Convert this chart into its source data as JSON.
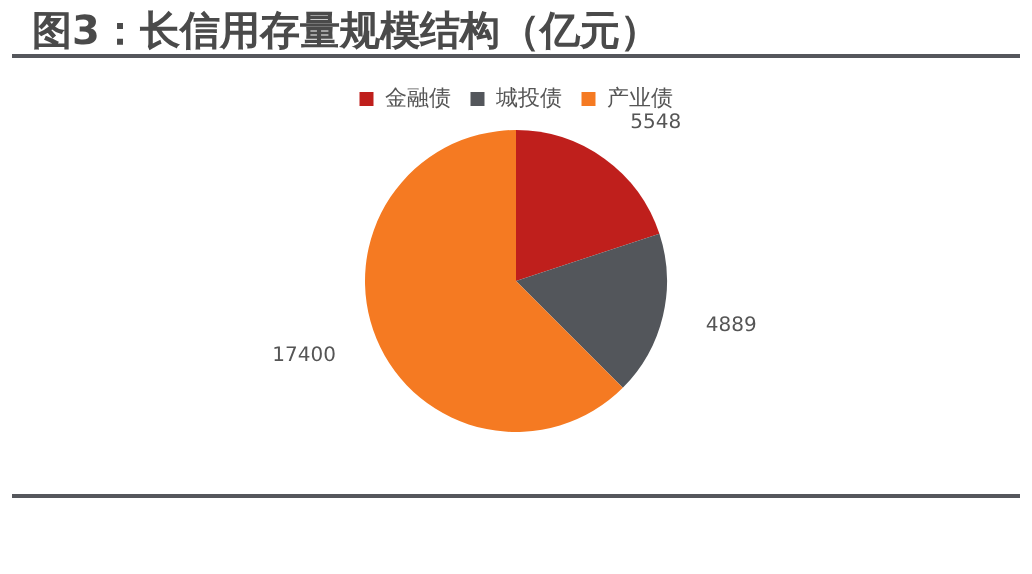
{
  "chart_data": {
    "type": "pie",
    "title": "图3：长信用存量规模结构（亿元）",
    "categories": [
      "金融债",
      "城投债",
      "产业债"
    ],
    "values": [
      5548,
      4889,
      17400
    ],
    "colors": [
      "#bf1f1c",
      "#53565b",
      "#f57a22"
    ],
    "legend": "top",
    "data_labels": true
  }
}
